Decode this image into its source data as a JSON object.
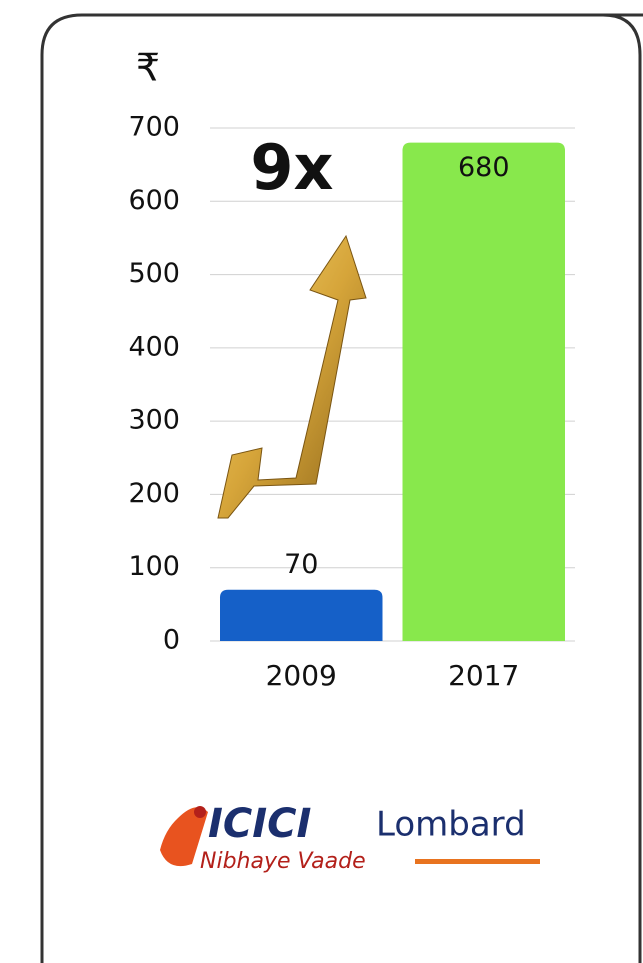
{
  "chart_data": {
    "type": "bar",
    "y_label": "₹",
    "annotation": "9x",
    "categories": [
      "2009",
      "2017"
    ],
    "values": [
      70,
      680
    ],
    "colors": [
      "#1560c8",
      "#88e84c"
    ],
    "ylim": [
      0,
      700
    ],
    "yticks": [
      0,
      100,
      200,
      300,
      400,
      500,
      600,
      700
    ],
    "grid": true
  },
  "logo": {
    "brand": "ICICI",
    "name": "Lombard",
    "tagline": "Nibhaye Vaade"
  }
}
